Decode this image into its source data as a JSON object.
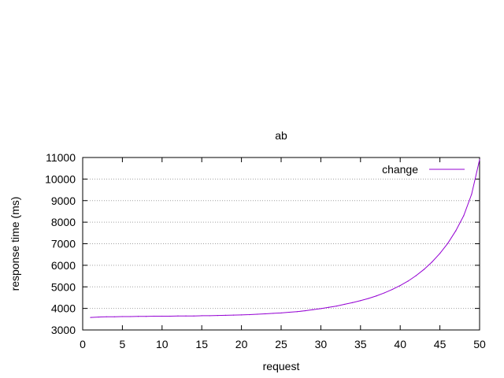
{
  "chart_data": {
    "type": "line",
    "title": "ab",
    "xlabel": "request",
    "ylabel": "response time (ms)",
    "xlim": [
      0,
      50
    ],
    "ylim": [
      3000,
      11000
    ],
    "x_ticks": [
      0,
      5,
      10,
      15,
      20,
      25,
      30,
      35,
      40,
      45,
      50
    ],
    "y_ticks": [
      3000,
      4000,
      5000,
      6000,
      7000,
      8000,
      9000,
      10000,
      11000
    ],
    "grid": "horizontal dotted",
    "legend_position": "top-right",
    "series": [
      {
        "name": "change",
        "color": "#9400d3",
        "x": [
          1,
          2,
          3,
          4,
          5,
          6,
          7,
          8,
          9,
          10,
          11,
          12,
          13,
          14,
          15,
          16,
          17,
          18,
          19,
          20,
          21,
          22,
          23,
          24,
          25,
          26,
          27,
          28,
          29,
          30,
          31,
          32,
          33,
          34,
          35,
          36,
          37,
          38,
          39,
          40,
          41,
          42,
          43,
          44,
          45,
          46,
          47,
          48,
          49,
          50
        ],
        "values": [
          3580,
          3600,
          3610,
          3610,
          3620,
          3620,
          3630,
          3630,
          3640,
          3640,
          3640,
          3650,
          3650,
          3650,
          3660,
          3660,
          3670,
          3680,
          3690,
          3700,
          3710,
          3730,
          3750,
          3770,
          3790,
          3820,
          3850,
          3890,
          3940,
          3990,
          4050,
          4110,
          4190,
          4270,
          4360,
          4460,
          4580,
          4720,
          4880,
          5060,
          5270,
          5520,
          5810,
          6150,
          6550,
          7020,
          7600,
          8300,
          9300,
          10900
        ]
      }
    ]
  }
}
